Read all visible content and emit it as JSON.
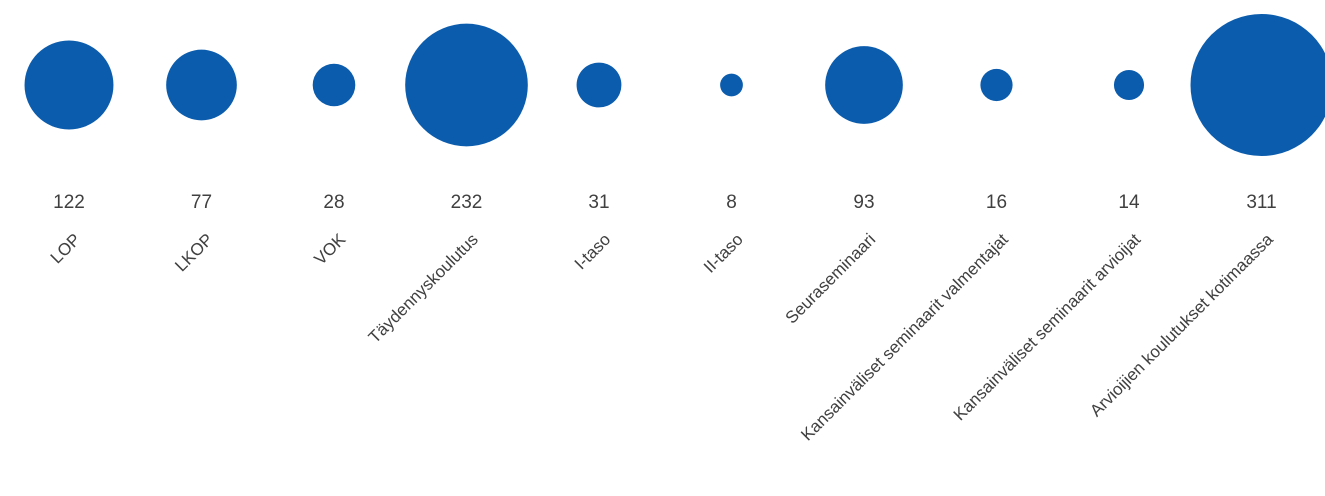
{
  "chart_data": {
    "type": "bubble",
    "title": "",
    "xlabel": "",
    "ylabel": "",
    "grid": false,
    "color": "#0b5cad",
    "categories": [
      "LOP",
      "LKOP",
      "VOK",
      "Täydennyskoulutus",
      "I-taso",
      "II-taso",
      "Seuraseminaari",
      "Kansainväliset seminaarit valmentajat",
      "Kansainväliset seminaarit arvioijat",
      "Arvioijien koulutukset kotimaassa"
    ],
    "values": [
      122,
      77,
      28,
      232,
      31,
      8,
      93,
      16,
      14,
      311
    ],
    "value_labels": [
      "122",
      "77",
      "28",
      "232",
      "31",
      "8",
      "93",
      "16",
      "14",
      "311"
    ]
  }
}
